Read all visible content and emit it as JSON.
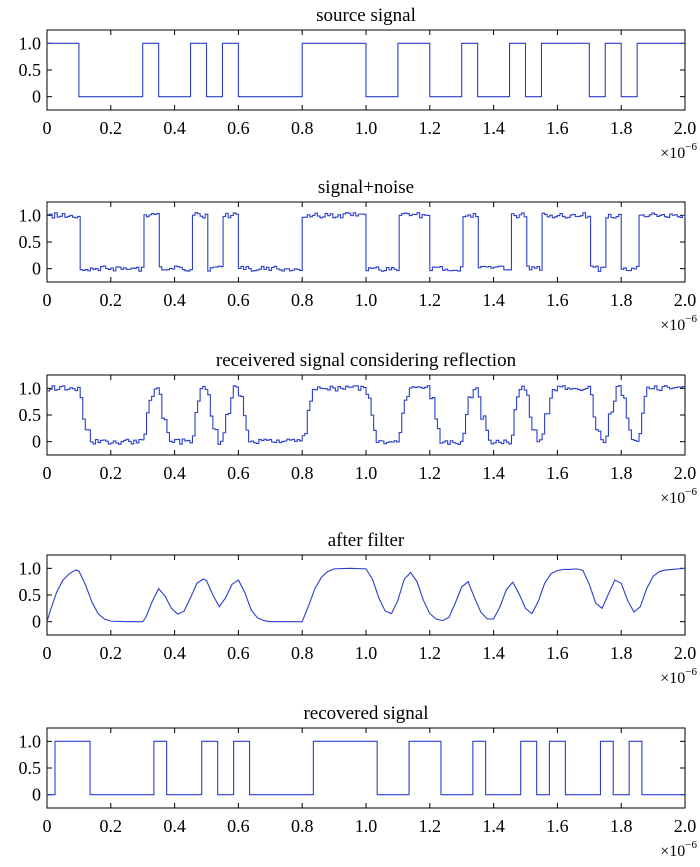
{
  "signal_color": "#2b3fcc",
  "chart_data": [
    {
      "type": "line",
      "title": "source signal",
      "xlim": [
        0,
        2.0
      ],
      "ylim": [
        -0.25,
        1.25
      ],
      "x_ticks": [
        "0",
        "0.2",
        "0.4",
        "0.6",
        "0.8",
        "1.0",
        "1.2",
        "1.4",
        "1.6",
        "1.8",
        "2.0"
      ],
      "y_ticks": [
        "0",
        "0.5",
        "1.0"
      ],
      "x_exponent": "×10",
      "x_exponent_power": "−6",
      "grid": false,
      "style": "step",
      "transitions": [
        0,
        0.1,
        0.3,
        0.35,
        0.45,
        0.5,
        0.55,
        0.6,
        0.8,
        1.0,
        1.1,
        1.2,
        1.3,
        1.35,
        1.45,
        1.5,
        1.55,
        1.7,
        1.75,
        1.8,
        1.85,
        2.0
      ],
      "levels": [
        1,
        0,
        1,
        0,
        1,
        0,
        1,
        0,
        1,
        0,
        1,
        0,
        1,
        0,
        1,
        0,
        1,
        0,
        1,
        0,
        1
      ]
    },
    {
      "type": "line",
      "title": "signal+noise",
      "xlim": [
        0,
        2.0
      ],
      "ylim": [
        -0.25,
        1.25
      ],
      "x_ticks": [
        "0",
        "0.2",
        "0.4",
        "0.6",
        "0.8",
        "1.0",
        "1.2",
        "1.4",
        "1.6",
        "1.8",
        "2.0"
      ],
      "y_ticks": [
        "0",
        "0.5",
        "1.0"
      ],
      "x_exponent": "×10",
      "x_exponent_power": "−6",
      "grid": false,
      "style": "noisy-step",
      "noise_amplitude": 0.05,
      "transitions": [
        0,
        0.1,
        0.3,
        0.35,
        0.45,
        0.5,
        0.55,
        0.6,
        0.8,
        1.0,
        1.1,
        1.2,
        1.3,
        1.35,
        1.45,
        1.5,
        1.55,
        1.7,
        1.75,
        1.8,
        1.85,
        2.0
      ],
      "levels": [
        1,
        0,
        1,
        0,
        1,
        0,
        1,
        0,
        1,
        0,
        1,
        0,
        1,
        0,
        1,
        0,
        1,
        0,
        1,
        0,
        1
      ]
    },
    {
      "type": "line",
      "title": "receivered signal considering reflection",
      "xlim": [
        0,
        2.0
      ],
      "ylim": [
        -0.25,
        1.25
      ],
      "x_ticks": [
        "0",
        "0.2",
        "0.4",
        "0.6",
        "0.8",
        "1.0",
        "1.2",
        "1.4",
        "1.6",
        "1.8",
        "2.0"
      ],
      "y_ticks": [
        "0",
        "0.5",
        "1.0"
      ],
      "x_exponent": "×10",
      "x_exponent_power": "−6",
      "grid": false,
      "style": "reflected-step",
      "noise_amplitude": 0.05,
      "transitions": [
        0,
        0.1,
        0.3,
        0.35,
        0.45,
        0.5,
        0.55,
        0.6,
        0.8,
        1.0,
        1.1,
        1.2,
        1.3,
        1.35,
        1.45,
        1.5,
        1.55,
        1.7,
        1.75,
        1.8,
        1.85,
        2.0
      ],
      "levels": [
        1,
        0,
        1,
        0,
        1,
        0,
        1,
        0,
        1,
        0,
        1,
        0,
        1,
        0,
        1,
        0,
        1,
        0,
        1,
        0,
        1
      ]
    },
    {
      "type": "line",
      "title": "after filter",
      "xlim": [
        0,
        2.0
      ],
      "ylim": [
        -0.25,
        1.25
      ],
      "x_ticks": [
        "0",
        "0.2",
        "0.4",
        "0.6",
        "0.8",
        "1.0",
        "1.2",
        "1.4",
        "1.6",
        "1.8",
        "2.0"
      ],
      "y_ticks": [
        "0",
        "0.5",
        "1.0"
      ],
      "x_exponent": "×10",
      "x_exponent_power": "−6",
      "grid": false,
      "style": "smooth",
      "x": [
        0,
        0.01,
        0.03,
        0.05,
        0.07,
        0.09,
        0.1,
        0.12,
        0.14,
        0.16,
        0.18,
        0.2,
        0.25,
        0.3,
        0.31,
        0.33,
        0.35,
        0.37,
        0.39,
        0.41,
        0.43,
        0.45,
        0.47,
        0.49,
        0.5,
        0.52,
        0.54,
        0.56,
        0.58,
        0.6,
        0.62,
        0.64,
        0.66,
        0.68,
        0.7,
        0.75,
        0.8,
        0.82,
        0.84,
        0.86,
        0.88,
        0.9,
        0.95,
        1.0,
        1.02,
        1.04,
        1.06,
        1.08,
        1.1,
        1.12,
        1.14,
        1.16,
        1.18,
        1.2,
        1.22,
        1.24,
        1.26,
        1.28,
        1.3,
        1.32,
        1.34,
        1.36,
        1.38,
        1.4,
        1.42,
        1.44,
        1.46,
        1.48,
        1.5,
        1.52,
        1.54,
        1.56,
        1.58,
        1.6,
        1.62,
        1.64,
        1.66,
        1.68,
        1.7,
        1.72,
        1.74,
        1.76,
        1.78,
        1.8,
        1.82,
        1.84,
        1.86,
        1.88,
        1.9,
        1.92,
        1.94,
        1.96,
        1.98,
        2.0
      ],
      "y": [
        0.0,
        0.2,
        0.55,
        0.78,
        0.9,
        0.97,
        0.95,
        0.7,
        0.38,
        0.15,
        0.05,
        0.01,
        0.0,
        0.0,
        0.08,
        0.38,
        0.62,
        0.48,
        0.25,
        0.14,
        0.2,
        0.45,
        0.72,
        0.8,
        0.77,
        0.5,
        0.28,
        0.45,
        0.7,
        0.78,
        0.55,
        0.22,
        0.07,
        0.02,
        0.0,
        0.0,
        0.0,
        0.3,
        0.62,
        0.83,
        0.94,
        0.99,
        1.0,
        0.99,
        0.8,
        0.45,
        0.2,
        0.15,
        0.4,
        0.8,
        0.92,
        0.75,
        0.4,
        0.15,
        0.05,
        0.02,
        0.08,
        0.35,
        0.65,
        0.75,
        0.45,
        0.18,
        0.05,
        0.05,
        0.28,
        0.6,
        0.74,
        0.52,
        0.25,
        0.15,
        0.38,
        0.72,
        0.9,
        0.96,
        0.98,
        0.98,
        0.99,
        0.96,
        0.7,
        0.35,
        0.25,
        0.52,
        0.78,
        0.72,
        0.4,
        0.18,
        0.28,
        0.62,
        0.85,
        0.94,
        0.97,
        0.98,
        0.99,
        1.0
      ]
    },
    {
      "type": "line",
      "title": "recovered signal",
      "xlim": [
        0,
        2.0
      ],
      "ylim": [
        -0.25,
        1.25
      ],
      "x_ticks": [
        "0",
        "0.2",
        "0.4",
        "0.6",
        "0.8",
        "1.0",
        "1.2",
        "1.4",
        "1.6",
        "1.8",
        "2.0"
      ],
      "y_ticks": [
        "0",
        "0.5",
        "1.0"
      ],
      "x_exponent": "×10",
      "x_exponent_power": "−6",
      "grid": false,
      "style": "step",
      "transitions": [
        0,
        0.025,
        0.135,
        0.335,
        0.375,
        0.485,
        0.535,
        0.585,
        0.635,
        0.835,
        1.035,
        1.135,
        1.235,
        1.335,
        1.375,
        1.485,
        1.535,
        1.575,
        1.625,
        1.735,
        1.775,
        1.825,
        1.865,
        2.0
      ],
      "levels": [
        0,
        1,
        0,
        1,
        0,
        1,
        0,
        1,
        0,
        1,
        0,
        1,
        0,
        1,
        0,
        1,
        0,
        1,
        0,
        1,
        0,
        1,
        0
      ]
    }
  ]
}
